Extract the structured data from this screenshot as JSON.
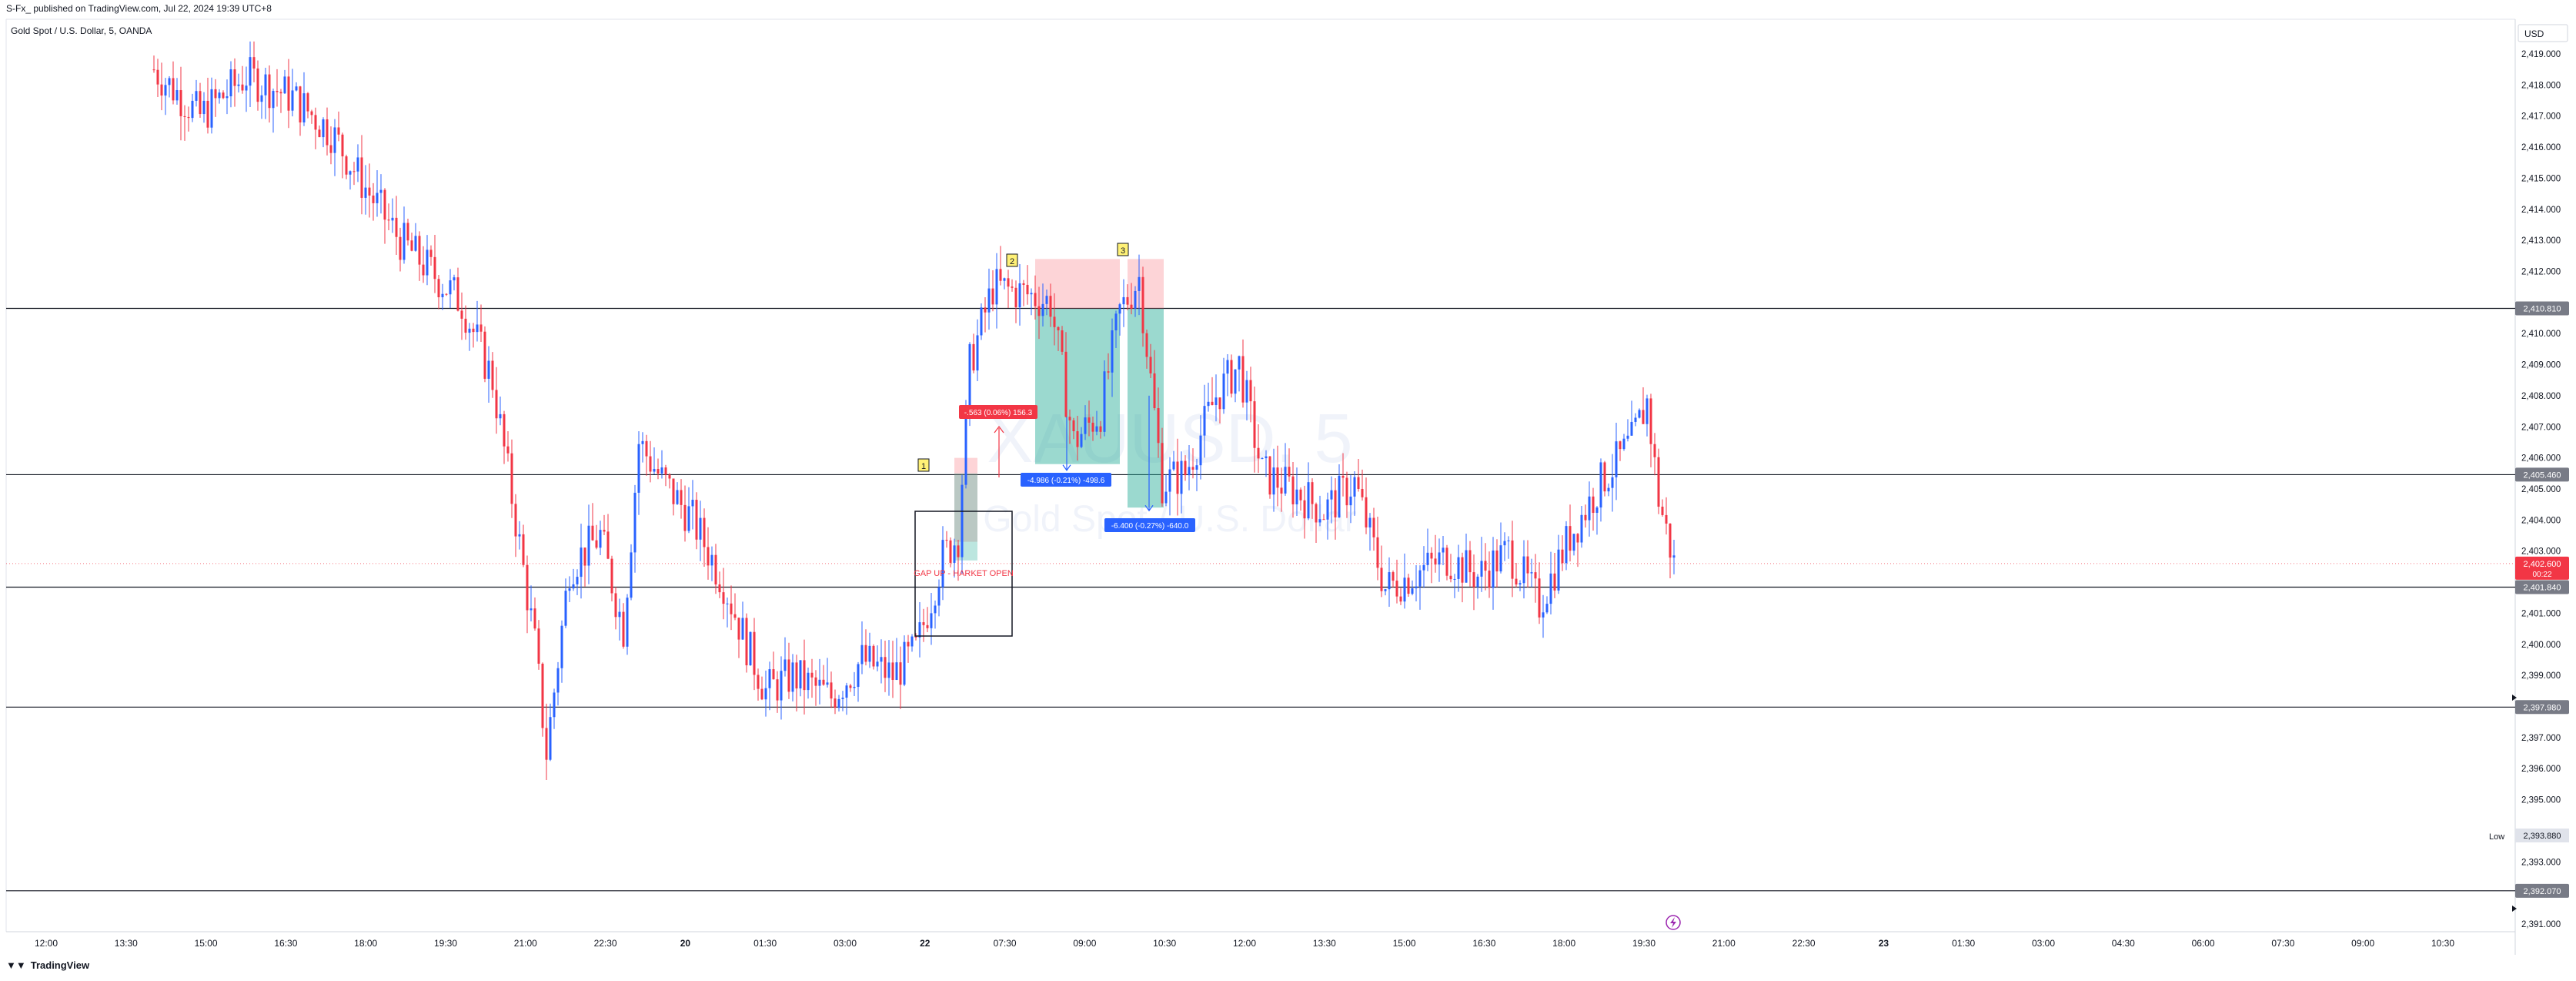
{
  "header": {
    "publisher_line": "S-Fx_ published on TradingView.com, Jul 22, 2024 19:39 UTC+8",
    "symbol_line": "Gold Spot / U.S. Dollar, 5, OANDA"
  },
  "currency_label": "USD",
  "watermark": {
    "symbol": "XAUUSD, 5",
    "name": "Gold Spot / U.S. Dollar"
  },
  "price_axis_ticks": [
    "2,419.000",
    "2,418.000",
    "2,417.000",
    "2,416.000",
    "2,415.000",
    "2,414.000",
    "2,413.000",
    "2,412.000",
    "2,410.000",
    "2,409.000",
    "2,408.000",
    "2,407.000",
    "2,406.000",
    "2,405.000",
    "2,404.000",
    "2,403.000",
    "2,401.000",
    "2,400.000",
    "2,399.000",
    "2,397.000",
    "2,396.000",
    "2,395.000",
    "2,393.000",
    "2,391.000"
  ],
  "time_axis_ticks": [
    "12:00",
    "13:30",
    "15:00",
    "16:30",
    "18:00",
    "19:30",
    "21:00",
    "22:30",
    "20",
    "01:30",
    "03:00",
    "22",
    "07:30",
    "09:00",
    "10:30",
    "12:00",
    "13:30",
    "15:00",
    "16:30",
    "18:00",
    "19:30",
    "21:00",
    "22:30",
    "23",
    "01:30",
    "03:00",
    "04:30",
    "06:00",
    "07:30",
    "09:00",
    "10:30"
  ],
  "horizontal_levels": [
    {
      "label": "2,410.810",
      "price": 2410.81,
      "color": "#787b86"
    },
    {
      "label": "2,405.460",
      "price": 2405.46,
      "color": "#787b86"
    },
    {
      "label": "2,401.840",
      "price": 2401.84,
      "color": "#787b86"
    },
    {
      "label": "2,397.980",
      "price": 2397.98,
      "color": "#787b86"
    },
    {
      "label": "2,392.070",
      "price": 2392.07,
      "color": "#787b86"
    }
  ],
  "current_price": {
    "label": "2,402.600",
    "countdown": "00:22",
    "price": 2402.6,
    "color": "#f23645"
  },
  "low_marker": {
    "label": "Low",
    "value": "2,393.880"
  },
  "annotations": {
    "marker_1": "1",
    "marker_2": "2",
    "marker_3": "3",
    "gap_text": "GAP UP - HARKET OPEN",
    "pnl_1": "-.563 (0.06%) 156.3",
    "pnl_2": "-4.986 (-0.21%) -498.6",
    "pnl_3": "-6.400 (-0.27%) -640.0"
  },
  "footer": {
    "brand": "TradingView"
  },
  "colors": {
    "bull": "#2962ff",
    "bear": "#f23645",
    "grid_line": "#787b86",
    "tp_zone": "#22ab94",
    "sl_zone": "#f7525f"
  }
}
